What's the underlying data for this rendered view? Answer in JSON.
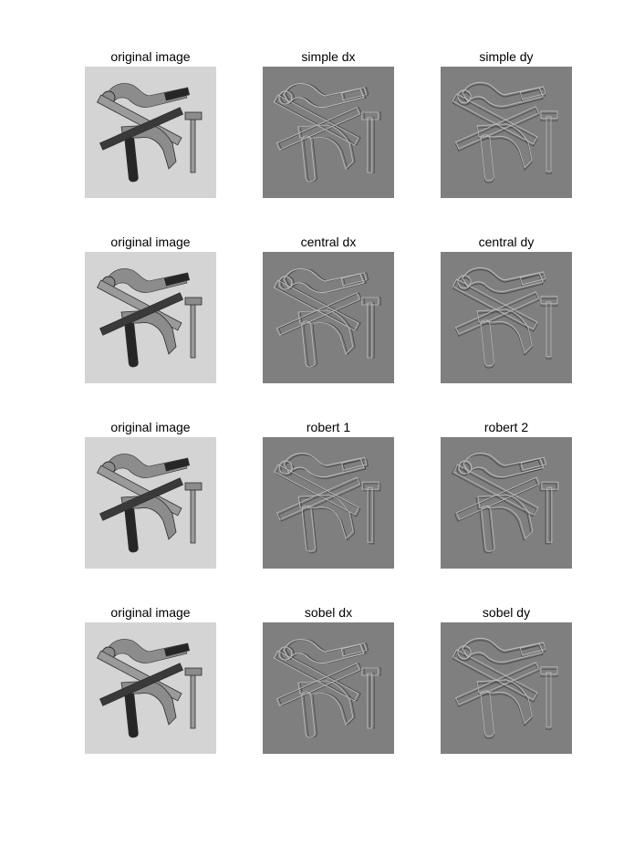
{
  "figure": {
    "panels": [
      {
        "title": "original image",
        "kind": "original",
        "filter": "none"
      },
      {
        "title": "simple dx",
        "kind": "gradient",
        "filter": "dx"
      },
      {
        "title": "simple dy",
        "kind": "gradient",
        "filter": "dy"
      },
      {
        "title": "original image",
        "kind": "original",
        "filter": "none"
      },
      {
        "title": "central dx",
        "kind": "gradient",
        "filter": "dx"
      },
      {
        "title": "central dy",
        "kind": "gradient",
        "filter": "dy"
      },
      {
        "title": "original image",
        "kind": "original",
        "filter": "none"
      },
      {
        "title": "robert 1",
        "kind": "gradient",
        "filter": "diag1"
      },
      {
        "title": "robert 2",
        "kind": "gradient",
        "filter": "diag2"
      },
      {
        "title": "original image",
        "kind": "original",
        "filter": "none"
      },
      {
        "title": "sobel dx",
        "kind": "gradient",
        "filter": "dx"
      },
      {
        "title": "sobel dy",
        "kind": "gradient",
        "filter": "dy"
      }
    ]
  },
  "colors": {
    "original_background": "#d4d4d4",
    "gradient_background": "#7f7f7f",
    "dark_tool": "#262626",
    "wood": "#9a9a9a",
    "metal": "#8c8c8c",
    "edge_light": "#bdbdbd",
    "edge_dark": "#4a4a4a"
  }
}
